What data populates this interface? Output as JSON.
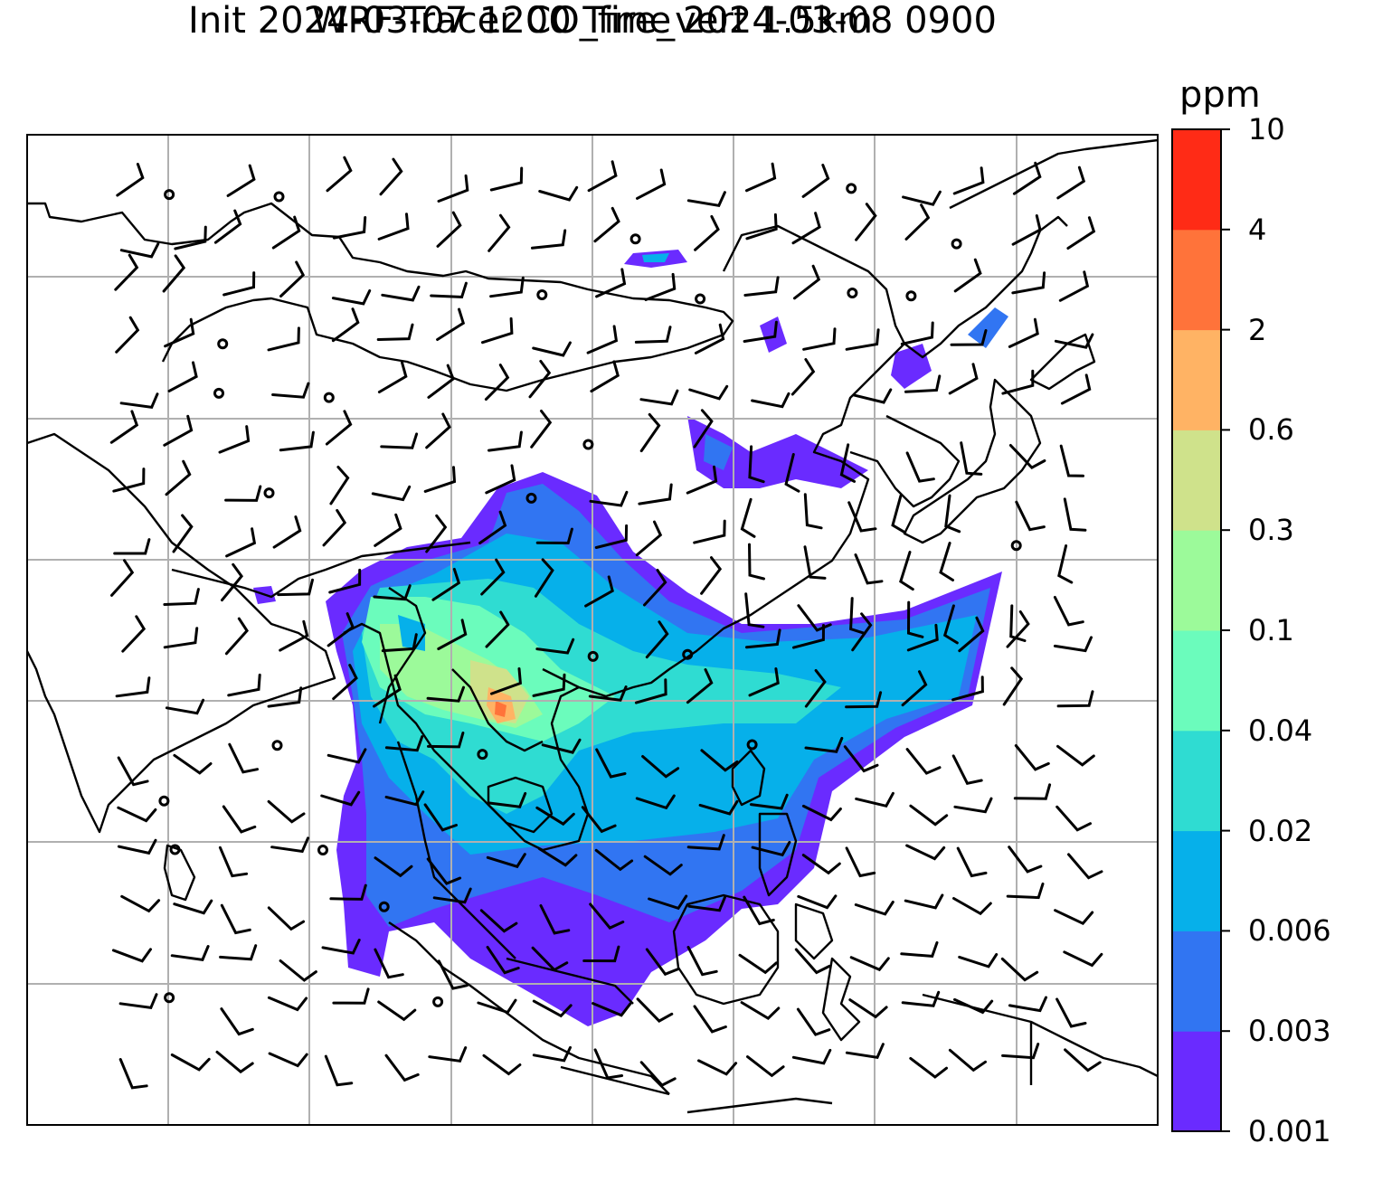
{
  "title_line1": "WRF-Tracer CO_fire_vert 1.5km",
  "title_line2": "Init 2024-03-07 1200 Time 2024-03-08 0900",
  "colorbar": {
    "unit": "ppm",
    "levels": [
      "0.001",
      "0.003",
      "0.006",
      "0.02",
      "0.04",
      "0.1",
      "0.3",
      "0.6",
      "2",
      "4",
      "10"
    ],
    "colors": [
      "#6a2bff",
      "#3175f2",
      "#06b0ea",
      "#2fdcd2",
      "#6bfcbc",
      "#9cfa9a",
      "#cfe28b",
      "#ffb364",
      "#ff733a",
      "#ff2b16"
    ]
  },
  "map": {
    "background": "#ffffff",
    "gridline_color": "#b0b0b0",
    "coastline_color": "#000000",
    "wind_barb_color": "#000000"
  }
}
